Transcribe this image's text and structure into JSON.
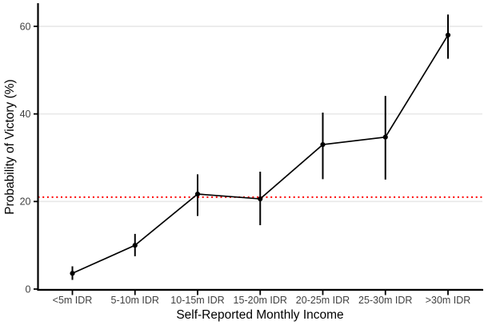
{
  "chart": {
    "background": "#ffffff",
    "axis_color": "#000000",
    "grid_color": "#e9e9e9",
    "tick_label_color": "#404040",
    "point_color": "#000000",
    "line_color": "#000000"
  },
  "chart_data": {
    "type": "line",
    "subtype": "point-estimates-with-confidence-intervals",
    "title": "",
    "xlabel": "Self-Reported Monthly Income",
    "ylabel": "Probability of Victory (%)",
    "categories": [
      "<5m IDR",
      "5-10m IDR",
      "10-15m IDR",
      "15-20m IDR",
      "20-25m IDR",
      "25-30m IDR",
      ">30m IDR"
    ],
    "series": [
      {
        "name": "Probability of Victory",
        "values": [
          3.6,
          10.0,
          21.7,
          20.6,
          33.0,
          34.7,
          58.0
        ],
        "ci_low": [
          2.1,
          7.5,
          16.7,
          14.6,
          25.1,
          25.0,
          52.6
        ],
        "ci_high": [
          5.2,
          12.6,
          26.2,
          26.8,
          40.3,
          44.1,
          62.7
        ]
      }
    ],
    "reference_line": {
      "y": 21,
      "color": "#FF0000",
      "style": "dotted"
    },
    "yticks": [
      0,
      20,
      40,
      60
    ],
    "ylim": [
      0,
      65
    ],
    "grid": "horizontal-major-only",
    "legend": "none"
  }
}
